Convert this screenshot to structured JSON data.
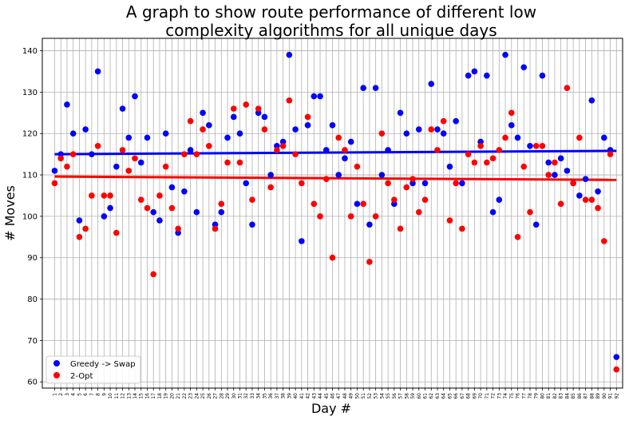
{
  "chart_data": {
    "type": "scatter",
    "title_line1": "A graph to show route performance of different low",
    "title_line2": "complexity algorithms for all unique days",
    "xlabel": "Day #",
    "ylabel": "# Moves",
    "xlim": [
      -1,
      93
    ],
    "ylim": [
      58.5,
      143
    ],
    "yticks": [
      60,
      70,
      80,
      90,
      100,
      110,
      120,
      130,
      140
    ],
    "grid": true,
    "legend_position": "lower-left",
    "x": [
      1,
      2,
      3,
      4,
      5,
      6,
      7,
      8,
      9,
      10,
      11,
      12,
      13,
      14,
      15,
      16,
      17,
      18,
      19,
      20,
      21,
      22,
      23,
      24,
      25,
      26,
      27,
      28,
      29,
      30,
      31,
      32,
      33,
      34,
      35,
      36,
      37,
      38,
      39,
      40,
      41,
      42,
      43,
      44,
      45,
      46,
      47,
      48,
      49,
      50,
      51,
      52,
      53,
      54,
      55,
      56,
      57,
      58,
      59,
      60,
      61,
      62,
      63,
      64,
      65,
      66,
      67,
      68,
      69,
      70,
      71,
      72,
      73,
      74,
      75,
      76,
      77,
      78,
      79,
      80,
      81,
      82,
      83,
      84,
      85,
      86,
      87,
      88,
      89,
      90,
      91,
      92
    ],
    "series": [
      {
        "name": "Greedy -> Swap",
        "color": "#0000ff",
        "values": [
          111,
          115,
          127,
          120,
          99,
          121,
          115,
          135,
          100,
          102,
          112,
          126,
          119,
          129,
          113,
          119,
          101,
          99,
          120,
          107,
          96,
          106,
          116,
          101,
          125,
          122,
          98,
          101,
          119,
          124,
          120,
          108,
          98,
          125,
          124,
          110,
          117,
          118,
          139,
          121,
          94,
          122,
          129,
          129,
          116,
          122,
          110,
          114,
          118,
          103,
          131,
          98,
          131,
          110,
          116,
          103,
          125,
          120,
          108,
          121,
          108,
          132,
          121,
          120,
          112,
          123,
          108,
          134,
          135,
          118,
          134,
          101,
          104,
          139,
          122,
          119,
          136,
          117,
          98,
          134,
          113,
          110,
          114,
          111,
          108,
          105,
          109,
          128,
          106,
          119,
          116,
          66
        ],
        "trend": [
          115.0,
          115.8
        ]
      },
      {
        "name": "2-Opt",
        "color": "#ff0000",
        "values": [
          108,
          114,
          112,
          115,
          95,
          97,
          105,
          117,
          105,
          105,
          96,
          116,
          111,
          114,
          104,
          102,
          86,
          105,
          112,
          102,
          97,
          115,
          123,
          115,
          121,
          117,
          97,
          103,
          113,
          126,
          113,
          127,
          104,
          126,
          121,
          107,
          116,
          117,
          128,
          115,
          108,
          124,
          103,
          100,
          109,
          90,
          119,
          116,
          100,
          112,
          103,
          89,
          100,
          120,
          108,
          104,
          97,
          107,
          109,
          101,
          104,
          121,
          116,
          123,
          99,
          108,
          97,
          115,
          113,
          117,
          113,
          114,
          116,
          119,
          125,
          95,
          112,
          101,
          117,
          117,
          110,
          113,
          103,
          131,
          108,
          119,
          104,
          104,
          102,
          94,
          115,
          63
        ],
        "trend": [
          109.6,
          108.8
        ]
      }
    ]
  }
}
